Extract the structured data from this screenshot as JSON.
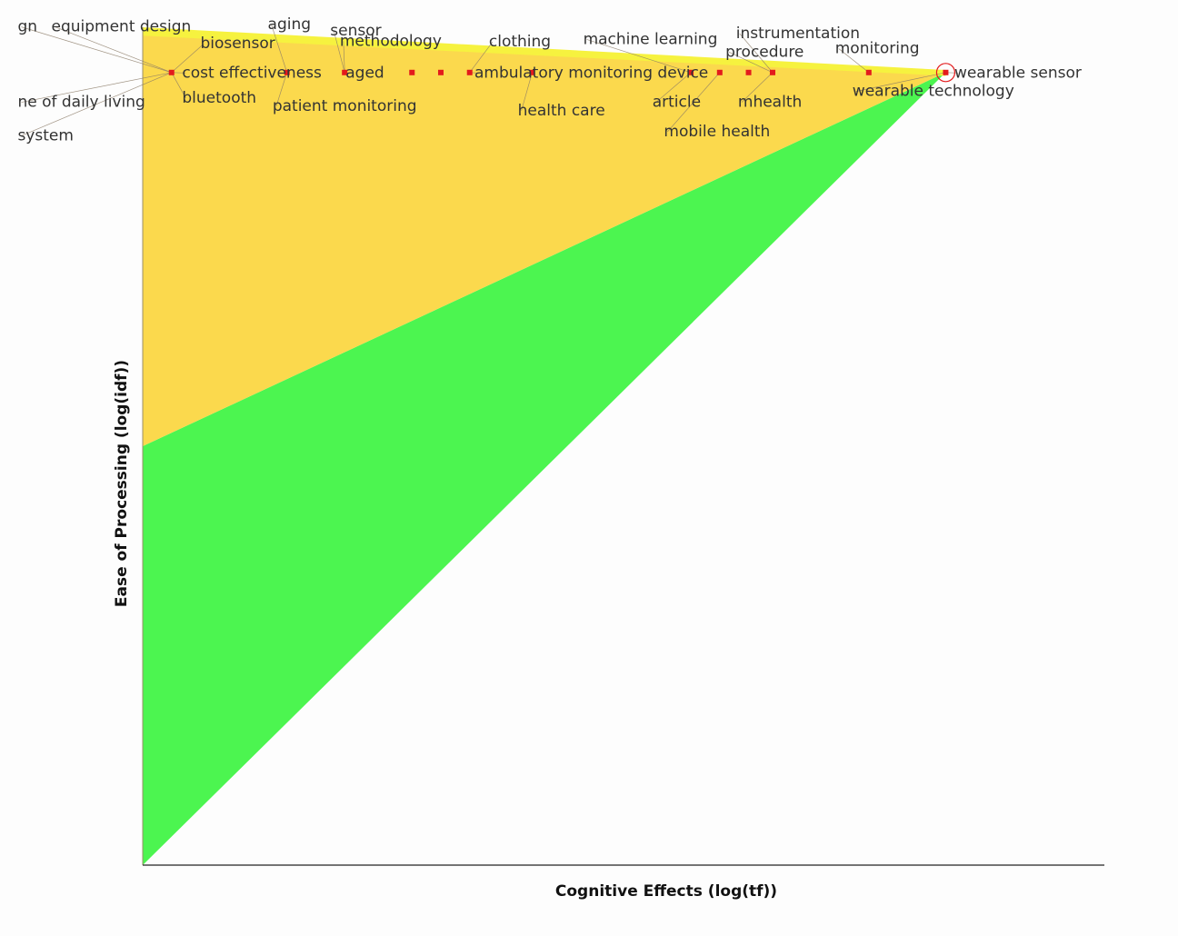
{
  "chart_data": {
    "type": "scatter",
    "xlabel": "Cognitive Effects (log(tf))",
    "ylabel": "Ease of Processing (log(idf))",
    "grid": false,
    "legend": "none",
    "colors": {
      "yellow_region": "#fbd94d",
      "green_region": "#4cf550",
      "point": "#e31a1c",
      "highlight_ring": "#e31a1c",
      "leader_line": "#8a7a66",
      "axis": "#222222",
      "label": "#333333"
    },
    "points": [
      {
        "x": 0.03,
        "y": 0.946
      },
      {
        "x": 0.15,
        "y": 0.946
      },
      {
        "x": 0.21,
        "y": 0.946
      },
      {
        "x": 0.28,
        "y": 0.946
      },
      {
        "x": 0.31,
        "y": 0.946
      },
      {
        "x": 0.34,
        "y": 0.946
      },
      {
        "x": 0.405,
        "y": 0.946
      },
      {
        "x": 0.57,
        "y": 0.946
      },
      {
        "x": 0.6,
        "y": 0.946
      },
      {
        "x": 0.63,
        "y": 0.946
      },
      {
        "x": 0.655,
        "y": 0.946
      },
      {
        "x": 0.755,
        "y": 0.946
      },
      {
        "x": 0.835,
        "y": 0.946
      }
    ],
    "highlight": {
      "x": 0.835,
      "y": 0.946,
      "label": "wearable sensor"
    },
    "labels": [
      {
        "text": "gn",
        "x": -0.13,
        "y": 0.995,
        "px": 0.03,
        "py": 0.946
      },
      {
        "text": "equipment design",
        "x": -0.095,
        "y": 0.995,
        "px": 0.03,
        "py": 0.946
      },
      {
        "text": "aging",
        "x": 0.13,
        "y": 0.998,
        "px": 0.15,
        "py": 0.946
      },
      {
        "text": "sensor",
        "x": 0.195,
        "y": 0.99,
        "px": 0.21,
        "py": 0.946
      },
      {
        "text": "biosensor",
        "x": 0.06,
        "y": 0.975,
        "px": 0.03,
        "py": 0.946
      },
      {
        "text": "methodology",
        "x": 0.205,
        "y": 0.978,
        "px": 0.21,
        "py": 0.946
      },
      {
        "text": "clothing",
        "x": 0.36,
        "y": 0.977,
        "px": 0.34,
        "py": 0.946
      },
      {
        "text": "machine learning",
        "x": 0.458,
        "y": 0.98,
        "px": 0.57,
        "py": 0.946
      },
      {
        "text": "instrumentation",
        "x": 0.617,
        "y": 0.987,
        "px": 0.655,
        "py": 0.946
      },
      {
        "text": "procedure",
        "x": 0.606,
        "y": 0.965,
        "px": 0.655,
        "py": 0.946
      },
      {
        "text": "monitoring",
        "x": 0.72,
        "y": 0.969,
        "px": 0.755,
        "py": 0.946
      },
      {
        "text": "cost effectiveness",
        "x": 0.041,
        "y": 0.94,
        "px": 0.03,
        "py": 0.946
      },
      {
        "text": "aged",
        "x": 0.211,
        "y": 0.94,
        "px": 0.21,
        "py": 0.946
      },
      {
        "text": "ambulatory monitoring device",
        "x": 0.345,
        "y": 0.94,
        "px": 0.34,
        "py": 0.946
      },
      {
        "text": "wearable sensor",
        "x": 0.844,
        "y": 0.94,
        "px": 0.835,
        "py": 0.946
      },
      {
        "text": "ne of daily living",
        "x": -0.13,
        "y": 0.905,
        "px": 0.03,
        "py": 0.946
      },
      {
        "text": "bluetooth",
        "x": 0.041,
        "y": 0.91,
        "px": 0.03,
        "py": 0.946
      },
      {
        "text": "patient monitoring",
        "x": 0.135,
        "y": 0.9,
        "px": 0.15,
        "py": 0.946
      },
      {
        "text": "health care",
        "x": 0.39,
        "y": 0.895,
        "px": 0.405,
        "py": 0.946
      },
      {
        "text": "article",
        "x": 0.53,
        "y": 0.905,
        "px": 0.57,
        "py": 0.946
      },
      {
        "text": "mhealth",
        "x": 0.619,
        "y": 0.905,
        "px": 0.655,
        "py": 0.946
      },
      {
        "text": "wearable technology",
        "x": 0.738,
        "y": 0.918,
        "px": 0.835,
        "py": 0.946
      },
      {
        "text": "system",
        "x": -0.13,
        "y": 0.865,
        "px": 0.03,
        "py": 0.946
      },
      {
        "text": "mobile health",
        "x": 0.542,
        "y": 0.87,
        "px": 0.6,
        "py": 0.946
      }
    ]
  }
}
